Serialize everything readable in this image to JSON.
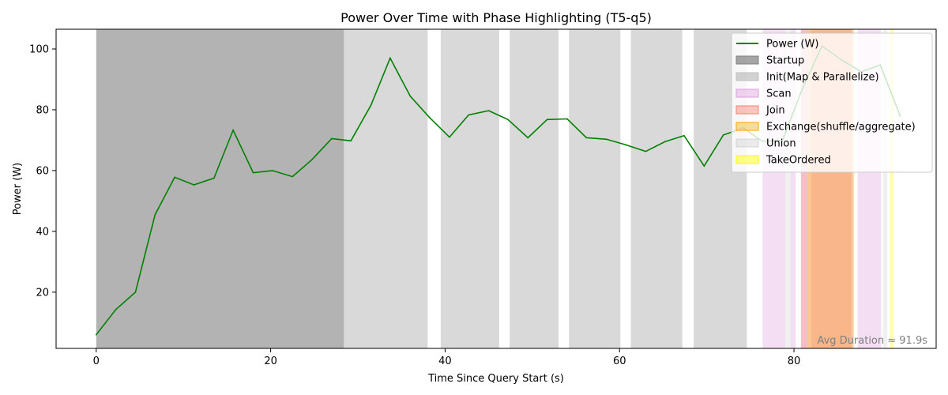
{
  "chart_data": {
    "type": "line",
    "title": "Power Over Time with Phase Highlighting (T5-q5)",
    "xlabel": "Time Since Query Start (s)",
    "ylabel": "Power (W)",
    "xlim": [
      -4.6,
      96.3
    ],
    "ylim": [
      1.5,
      106.5
    ],
    "xticks": [
      0,
      20,
      40,
      60,
      80
    ],
    "yticks": [
      20,
      40,
      60,
      80,
      100
    ],
    "grid": false,
    "legend_position": "top-right",
    "series": [
      {
        "name": "Power (W)",
        "color": "#008000",
        "x": [
          0,
          2.25,
          4.5,
          6.75,
          9.0,
          11.2,
          13.5,
          15.7,
          18.0,
          20.2,
          22.5,
          24.7,
          27.0,
          29.2,
          31.5,
          33.7,
          36.0,
          38.2,
          40.5,
          42.7,
          45.0,
          47.2,
          49.5,
          51.7,
          54.0,
          56.2,
          58.5,
          60.7,
          63.0,
          65.2,
          67.4,
          69.7,
          71.9,
          74.2,
          76.4,
          78.7,
          80.9,
          83.2,
          85.4,
          87.7,
          89.9,
          92.2
        ],
        "y": [
          6.0,
          14.3,
          20.0,
          45.5,
          57.8,
          55.3,
          57.5,
          73.3,
          59.3,
          60.0,
          58.0,
          63.5,
          70.5,
          69.8,
          81.5,
          97.0,
          84.5,
          77.5,
          71.0,
          78.3,
          79.7,
          76.8,
          70.8,
          76.8,
          77.0,
          70.8,
          70.3,
          68.5,
          66.3,
          69.5,
          71.5,
          61.5,
          71.7,
          74.0,
          69.6,
          70.0,
          86.5,
          101.0,
          96.5,
          92.5,
          94.7,
          77.8
        ]
      }
    ],
    "phases": [
      {
        "name": "Startup",
        "color": "#808080",
        "opacity": 0.6,
        "spans": [
          [
            0,
            28.4
          ]
        ]
      },
      {
        "name": "Init(Map & Parallelize)",
        "color": "#bfbfbf",
        "opacity": 0.6,
        "spans": [
          [
            28.4,
            38.0
          ],
          [
            39.5,
            46.2
          ],
          [
            47.4,
            53.0
          ],
          [
            54.2,
            60.1
          ],
          [
            61.3,
            67.2
          ],
          [
            68.5,
            74.6
          ]
        ]
      },
      {
        "name": "Scan",
        "color": "#dda0dd",
        "opacity": 0.35,
        "spans": [
          [
            76.4,
            79.0
          ],
          [
            79.6,
            80.2
          ],
          [
            80.8,
            81.6
          ],
          [
            82.0,
            86.8
          ],
          [
            87.3,
            90.0
          ]
        ]
      },
      {
        "name": "Join",
        "color": "#fa8072",
        "opacity": 0.35,
        "spans": [
          [
            80.8,
            86.6
          ]
        ]
      },
      {
        "name": "Exchange(shuffle/aggregate)",
        "color": "#ffa500",
        "opacity": 0.3,
        "spans": [
          [
            81.6,
            86.9
          ]
        ]
      },
      {
        "name": "Union",
        "color": "#d3d3d3",
        "opacity": 0.35,
        "spans": [
          [
            79.0,
            79.6
          ],
          [
            90.2,
            90.7
          ]
        ]
      },
      {
        "name": "TakeOrdered",
        "color": "#ffff00",
        "opacity": 0.35,
        "spans": [
          [
            91.0,
            91.4
          ]
        ]
      }
    ],
    "annotation": "Avg Duration ≈ 91.9s"
  }
}
